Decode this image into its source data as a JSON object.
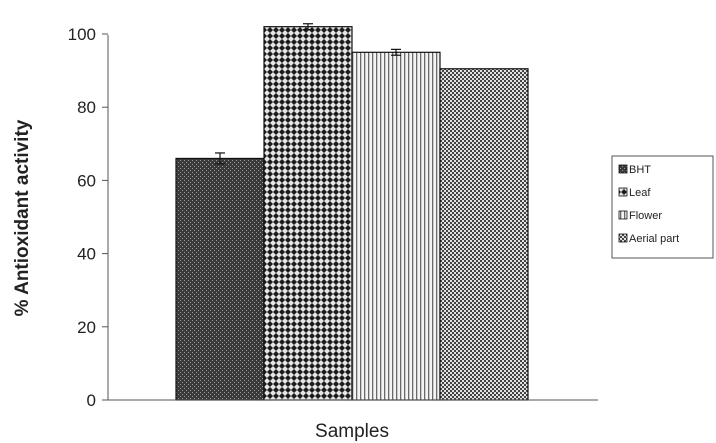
{
  "chart_data": {
    "type": "bar",
    "categories": [
      "Samples"
    ],
    "series": [
      {
        "name": "BHT",
        "values": [
          66
        ],
        "error": [
          1.5
        ]
      },
      {
        "name": "Leaf",
        "values": [
          102
        ],
        "error": [
          0.8
        ]
      },
      {
        "name": "Flower",
        "values": [
          95
        ],
        "error": [
          0.8
        ]
      },
      {
        "name": "Aerial part",
        "values": [
          90.5
        ],
        "error": [
          0
        ]
      }
    ],
    "title": "",
    "xlabel": "Samples",
    "ylabel": "% Antioxidant activity",
    "ylim": [
      0,
      100
    ],
    "yticks": [
      "0",
      "20",
      "40",
      "60",
      "80",
      "100"
    ],
    "grid": false,
    "legend_position": "right"
  }
}
